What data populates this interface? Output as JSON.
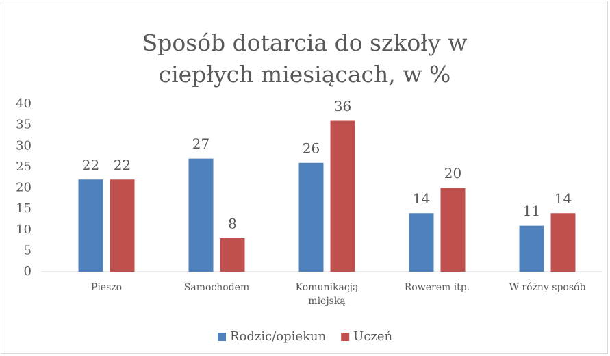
{
  "chart_data": {
    "type": "bar",
    "title": "Sposób dotarcia do szkoły w ciepłych miesiącach, w %",
    "categories": [
      "Pieszo",
      "Samochodem",
      "Komunikacją miejską",
      "Rowerem itp.",
      "W różny sposób"
    ],
    "series": [
      {
        "name": "Rodzic/opiekun",
        "color": "#4f81bd",
        "values": [
          22,
          27,
          26,
          14,
          11
        ]
      },
      {
        "name": "Uczeń",
        "color": "#c0504d",
        "values": [
          22,
          8,
          36,
          20,
          14
        ]
      }
    ],
    "ylim": [
      0,
      40
    ],
    "yticks": [
      0,
      5,
      10,
      15,
      20,
      25,
      30,
      35,
      40
    ],
    "legend": "bottom"
  }
}
